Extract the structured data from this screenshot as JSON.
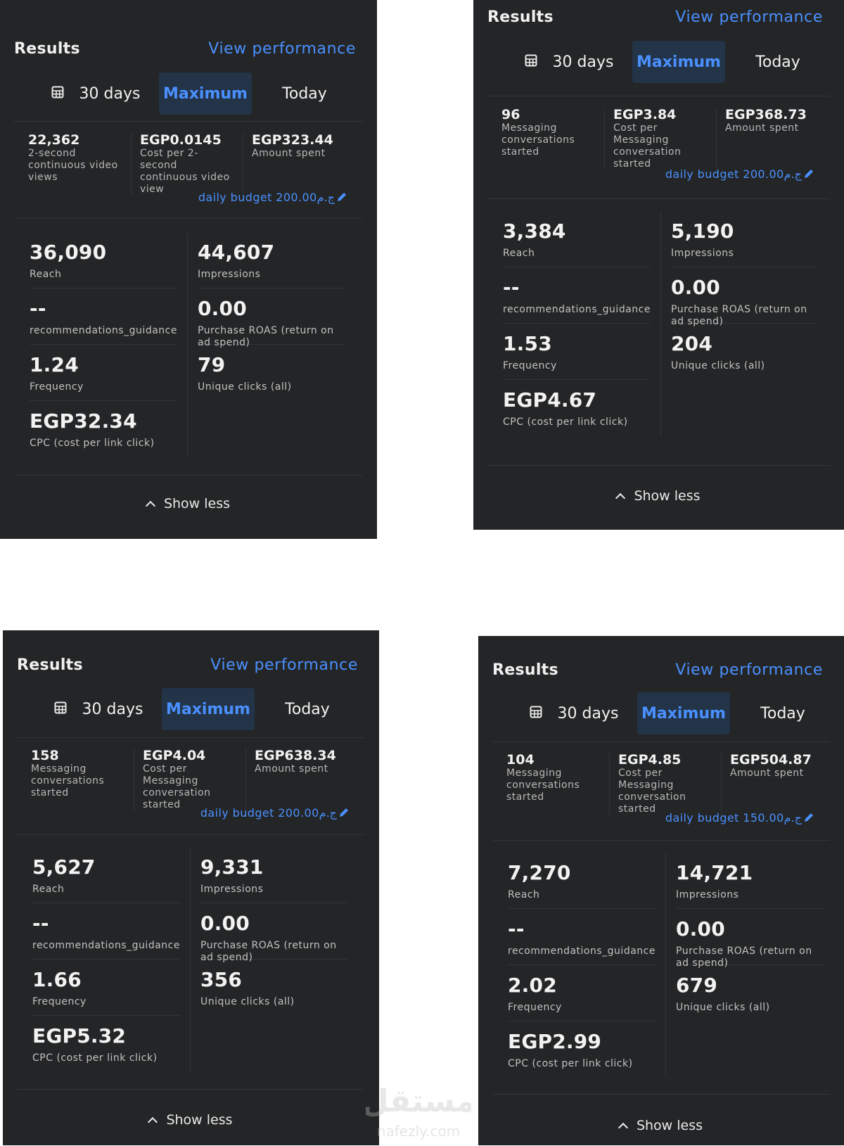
{
  "panels": [
    {
      "title": "Results",
      "view_link": "View performance",
      "tabs": [
        "30 days",
        "Maximum",
        "Today"
      ],
      "summary": [
        {
          "value": "22,362",
          "label": "2-second continuous video views"
        },
        {
          "value": "EGP0.0145",
          "label": "Cost per 2-second continuous video view"
        },
        {
          "value": "EGP323.44",
          "label": "Amount spent"
        }
      ],
      "budget": "daily budget 200.00ج.م",
      "metrics_left": [
        {
          "value": "36,090",
          "label": "Reach"
        },
        {
          "value": "--",
          "label": "recommendations_guidance"
        },
        {
          "value": "1.24",
          "label": "Frequency"
        },
        {
          "value": "EGP32.34",
          "label": "CPC (cost per link click)"
        }
      ],
      "metrics_right": [
        {
          "value": "44,607",
          "label": "Impressions"
        },
        {
          "value": "0.00",
          "label": "Purchase ROAS (return on ad spend)"
        },
        {
          "value": "79",
          "label": "Unique clicks (all)"
        }
      ],
      "show_less": "Show less"
    },
    {
      "title": "Results",
      "view_link": "View performance",
      "tabs": [
        "30 days",
        "Maximum",
        "Today"
      ],
      "summary": [
        {
          "value": "96",
          "label": "Messaging conversations started"
        },
        {
          "value": "EGP3.84",
          "label": "Cost per Messaging conversation started"
        },
        {
          "value": "EGP368.73",
          "label": "Amount spent"
        }
      ],
      "budget": "daily budget 200.00ج.م",
      "metrics_left": [
        {
          "value": "3,384",
          "label": "Reach"
        },
        {
          "value": "--",
          "label": "recommendations_guidance"
        },
        {
          "value": "1.53",
          "label": "Frequency"
        },
        {
          "value": "EGP4.67",
          "label": "CPC (cost per link click)"
        }
      ],
      "metrics_right": [
        {
          "value": "5,190",
          "label": "Impressions"
        },
        {
          "value": "0.00",
          "label": "Purchase ROAS (return on ad spend)"
        },
        {
          "value": "204",
          "label": "Unique clicks (all)"
        }
      ],
      "show_less": "Show less"
    },
    {
      "title": "Results",
      "view_link": "View performance",
      "tabs": [
        "30 days",
        "Maximum",
        "Today"
      ],
      "summary": [
        {
          "value": "158",
          "label": "Messaging conversations started"
        },
        {
          "value": "EGP4.04",
          "label": "Cost per Messaging conversation started"
        },
        {
          "value": "EGP638.34",
          "label": "Amount spent"
        }
      ],
      "budget": "daily budget 200.00ج.م",
      "metrics_left": [
        {
          "value": "5,627",
          "label": "Reach"
        },
        {
          "value": "--",
          "label": "recommendations_guidance"
        },
        {
          "value": "1.66",
          "label": "Frequency"
        },
        {
          "value": "EGP5.32",
          "label": "CPC (cost per link click)"
        }
      ],
      "metrics_right": [
        {
          "value": "9,331",
          "label": "Impressions"
        },
        {
          "value": "0.00",
          "label": "Purchase ROAS (return on ad spend)"
        },
        {
          "value": "356",
          "label": "Unique clicks (all)"
        }
      ],
      "show_less": "Show less"
    },
    {
      "title": "Results",
      "view_link": "View performance",
      "tabs": [
        "30 days",
        "Maximum",
        "Today"
      ],
      "summary": [
        {
          "value": "104",
          "label": "Messaging conversations started"
        },
        {
          "value": "EGP4.85",
          "label": "Cost per Messaging conversation started"
        },
        {
          "value": "EGP504.87",
          "label": "Amount spent"
        }
      ],
      "budget": "daily budget 150.00ج.م",
      "metrics_left": [
        {
          "value": "7,270",
          "label": "Reach"
        },
        {
          "value": "--",
          "label": "recommendations_guidance"
        },
        {
          "value": "2.02",
          "label": "Frequency"
        },
        {
          "value": "EGP2.99",
          "label": "CPC (cost per link click)"
        }
      ],
      "metrics_right": [
        {
          "value": "14,721",
          "label": "Impressions"
        },
        {
          "value": "0.00",
          "label": "Purchase ROAS (return on ad spend)"
        },
        {
          "value": "679",
          "label": "Unique clicks (all)"
        }
      ],
      "show_less": "Show less"
    }
  ],
  "watermark": {
    "arabic": "مستقل",
    "latin": "nafezly.com"
  },
  "colors": {
    "panel_bg": "#242526",
    "accent": "#4a90ff",
    "tab_active_bg": "#233449",
    "page_bg": "#ffffff"
  }
}
